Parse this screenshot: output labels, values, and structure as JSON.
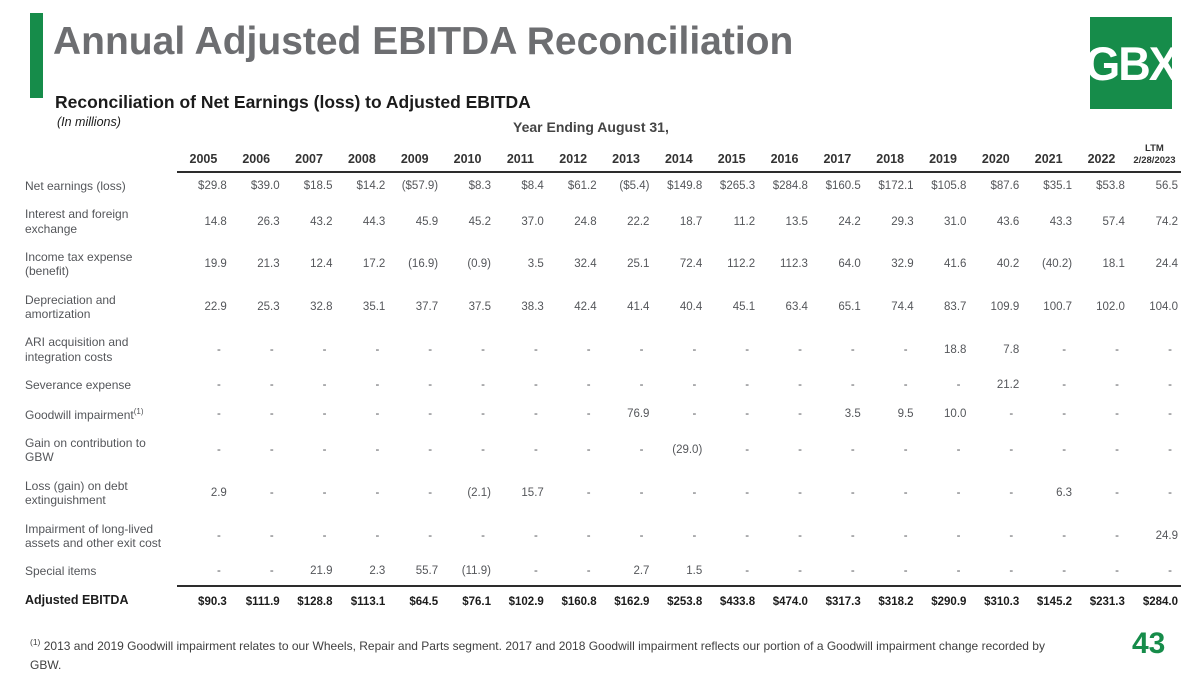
{
  "header": {
    "title": "Annual Adjusted EBITDA Reconciliation",
    "subtitle": "Reconciliation of Net Earnings (loss) to Adjusted EBITDA",
    "units_note": "(In millions)",
    "logo_text": "GBX"
  },
  "table": {
    "caption": "Year Ending August 31,",
    "columns": [
      "2005",
      "2006",
      "2007",
      "2008",
      "2009",
      "2010",
      "2011",
      "2012",
      "2013",
      "2014",
      "2015",
      "2016",
      "2017",
      "2018",
      "2019",
      "2020",
      "2021",
      "2022"
    ],
    "ltm_column": {
      "line1": "LTM",
      "line2": "2/28/2023"
    },
    "rows": [
      {
        "label": "Net earnings (loss)",
        "values": [
          "$29.8",
          "$39.0",
          "$18.5",
          "$14.2",
          "($57.9)",
          "$8.3",
          "$8.4",
          "$61.2",
          "($5.4)",
          "$149.8",
          "$265.3",
          "$284.8",
          "$160.5",
          "$172.1",
          "$105.8",
          "$87.6",
          "$35.1",
          "$53.8",
          "56.5"
        ]
      },
      {
        "label": "Interest and foreign exchange",
        "values": [
          "14.8",
          "26.3",
          "43.2",
          "44.3",
          "45.9",
          "45.2",
          "37.0",
          "24.8",
          "22.2",
          "18.7",
          "11.2",
          "13.5",
          "24.2",
          "29.3",
          "31.0",
          "43.6",
          "43.3",
          "57.4",
          "74.2"
        ]
      },
      {
        "label": "Income tax expense (benefit)",
        "values": [
          "19.9",
          "21.3",
          "12.4",
          "17.2",
          "(16.9)",
          "(0.9)",
          "3.5",
          "32.4",
          "25.1",
          "72.4",
          "112.2",
          "112.3",
          "64.0",
          "32.9",
          "41.6",
          "40.2",
          "(40.2)",
          "18.1",
          "24.4"
        ]
      },
      {
        "label": "Depreciation and amortization",
        "values": [
          "22.9",
          "25.3",
          "32.8",
          "35.1",
          "37.7",
          "37.5",
          "38.3",
          "42.4",
          "41.4",
          "40.4",
          "45.1",
          "63.4",
          "65.1",
          "74.4",
          "83.7",
          "109.9",
          "100.7",
          "102.0",
          "104.0"
        ]
      },
      {
        "label": "ARI acquisition and integration costs",
        "values": [
          "-",
          "-",
          "-",
          "-",
          "-",
          "-",
          "-",
          "-",
          "-",
          "-",
          "-",
          "-",
          "-",
          "-",
          "18.8",
          "7.8",
          "-",
          "-",
          "-"
        ]
      },
      {
        "label": "Severance expense",
        "values": [
          "-",
          "-",
          "-",
          "-",
          "-",
          "-",
          "-",
          "-",
          "-",
          "-",
          "-",
          "-",
          "-",
          "-",
          "-",
          "21.2",
          "-",
          "-",
          "-"
        ]
      },
      {
        "label": "Goodwill impairment",
        "label_sup": "(1)",
        "values": [
          "-",
          "-",
          "-",
          "-",
          "-",
          "-",
          "-",
          "-",
          "76.9",
          "-",
          "-",
          "-",
          "3.5",
          "9.5",
          "10.0",
          "-",
          "-",
          "-",
          "-"
        ]
      },
      {
        "label": "Gain on contribution to GBW",
        "values": [
          "-",
          "-",
          "-",
          "-",
          "-",
          "-",
          "-",
          "-",
          "-",
          "(29.0)",
          "-",
          "-",
          "-",
          "-",
          "-",
          "-",
          "-",
          "-",
          "-"
        ]
      },
      {
        "label": "Loss (gain) on debt extinguishment",
        "values": [
          "2.9",
          "-",
          "-",
          "-",
          "-",
          "(2.1)",
          "15.7",
          "-",
          "-",
          "-",
          "-",
          "-",
          "-",
          "-",
          "-",
          "-",
          "6.3",
          "-",
          "-"
        ]
      },
      {
        "label": "Impairment of long-lived assets and other exit cost",
        "values": [
          "-",
          "-",
          "-",
          "-",
          "-",
          "-",
          "-",
          "-",
          "-",
          "-",
          "-",
          "-",
          "-",
          "-",
          "-",
          "-",
          "-",
          "-",
          "24.9"
        ]
      },
      {
        "label": "Special items",
        "values": [
          "-",
          "-",
          "21.9",
          "2.3",
          "55.7",
          "(11.9)",
          "-",
          "-",
          "2.7",
          "1.5",
          "-",
          "-",
          "-",
          "-",
          "-",
          "-",
          "-",
          "-",
          "-"
        ]
      },
      {
        "label": "Adjusted EBITDA",
        "total": true,
        "values": [
          "$90.3",
          "$111.9",
          "$128.8",
          "$113.1",
          "$64.5",
          "$76.1",
          "$102.9",
          "$160.8",
          "$162.9",
          "$253.8",
          "$433.8",
          "$474.0",
          "$317.3",
          "$318.2",
          "$290.9",
          "$310.3",
          "$145.2",
          "$231.3",
          "$284.0"
        ]
      }
    ]
  },
  "footnote": {
    "marker": "(1)",
    "text": "2013 and 2019 Goodwill impairment relates to our Wheels, Repair and Parts segment.  2017 and 2018 Goodwill impairment reflects our portion of a Goodwill impairment change recorded by GBW."
  },
  "footer": {
    "page_number": "43"
  },
  "colors": {
    "brand_green": "#168C4A",
    "title_gray": "#6D6E71"
  }
}
